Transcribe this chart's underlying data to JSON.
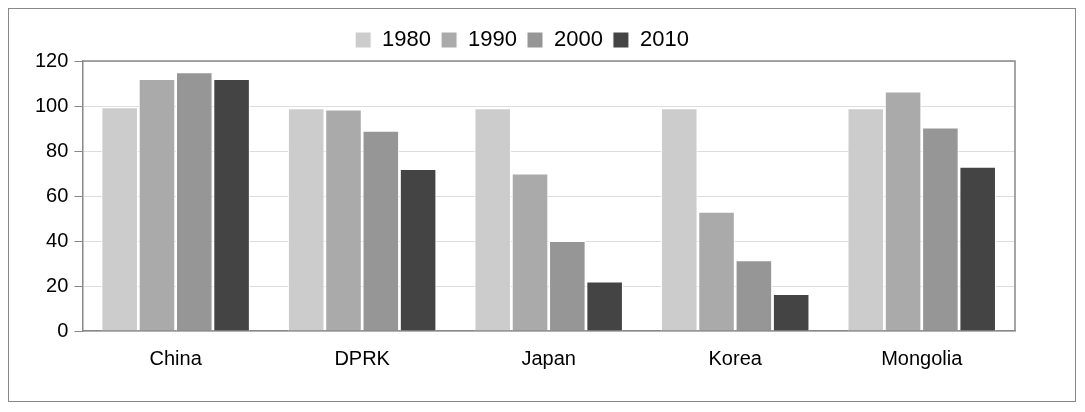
{
  "chart_data": {
    "type": "bar",
    "categories": [
      "China",
      "DPRK",
      "Japan",
      "Korea",
      "Mongolia"
    ],
    "series": [
      {
        "name": "1980",
        "color": "#cccccc",
        "values": [
          99.5,
          99,
          99,
          99,
          99
        ]
      },
      {
        "name": "1990",
        "color": "#aaaaaa",
        "values": [
          112,
          98.5,
          70,
          53,
          106.5
        ]
      },
      {
        "name": "2000",
        "color": "#969696",
        "values": [
          115,
          89,
          40,
          31.5,
          90.5
        ]
      },
      {
        "name": "2010",
        "color": "#444444",
        "values": [
          112,
          72,
          22,
          16.5,
          73
        ]
      }
    ],
    "ylim": [
      0,
      120
    ],
    "yticks": [
      0,
      20,
      40,
      60,
      80,
      100,
      120
    ],
    "grid": "y",
    "legend": "top"
  }
}
